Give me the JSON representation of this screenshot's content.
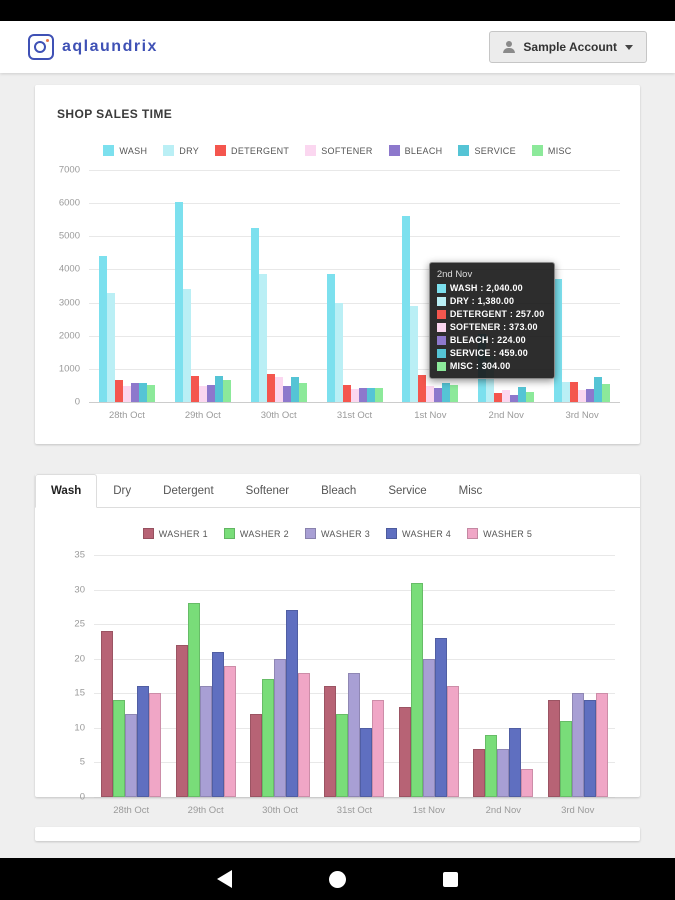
{
  "header": {
    "logo_text": "aqlaundrix",
    "account_label": "Sample Account"
  },
  "colors": {
    "brand": "#3f51b5",
    "page_bg": "#efefef",
    "tooltip_bg": "#161616"
  },
  "icons": {
    "logo": "washing-machine-icon",
    "account": "person-icon",
    "account_caret": "chevron-down-icon",
    "nav": [
      "back-icon",
      "home-icon",
      "recents-icon"
    ]
  },
  "washer_tabs": {
    "items": [
      "Wash",
      "Dry",
      "Detergent",
      "Softener",
      "Bleach",
      "Service",
      "Misc"
    ],
    "active": "Wash"
  },
  "chart_data": [
    {
      "id": "shop-sales",
      "type": "bar",
      "title": "SHOP SALES TIME",
      "xlabel": "",
      "ylabel": "",
      "ylim": [
        0,
        7000
      ],
      "ytick_step": 1000,
      "grid": "horizontal",
      "legend_position": "top",
      "categories": [
        "28th Oct",
        "29th Oct",
        "30th Oct",
        "31st Oct",
        "1st Nov",
        "2nd Nov",
        "3rd Nov"
      ],
      "series": [
        {
          "name": "WASH",
          "color": "#7ce0ee",
          "values": [
            4400,
            6050,
            5250,
            3850,
            5600,
            2040,
            3700
          ]
        },
        {
          "name": "DRY",
          "color": "#baeff5",
          "values": [
            3300,
            3400,
            3850,
            3000,
            2900,
            1380,
            600
          ]
        },
        {
          "name": "DETERGENT",
          "color": "#f4564e",
          "values": [
            650,
            790,
            850,
            520,
            810,
            257,
            600
          ]
        },
        {
          "name": "SOFTENER",
          "color": "#fbd7f0",
          "values": [
            480,
            490,
            760,
            380,
            490,
            373,
            360
          ]
        },
        {
          "name": "BLEACH",
          "color": "#8d78cc",
          "values": [
            580,
            520,
            480,
            430,
            430,
            224,
            390
          ]
        },
        {
          "name": "SERVICE",
          "color": "#55c4d5",
          "values": [
            580,
            790,
            760,
            430,
            580,
            459,
            750
          ]
        },
        {
          "name": "MISC",
          "color": "#8ce99a",
          "values": [
            520,
            660,
            580,
            430,
            520,
            304,
            540
          ]
        }
      ],
      "tooltip": {
        "title": "2nd Nov",
        "rows": [
          {
            "label": "WASH",
            "value": "2,040.00",
            "color": "#7ce0ee"
          },
          {
            "label": "DRY",
            "value": "1,380.00",
            "color": "#baeff5"
          },
          {
            "label": "DETERGENT",
            "value": "257.00",
            "color": "#f4564e"
          },
          {
            "label": "SOFTENER",
            "value": "373.00",
            "color": "#fbd7f0"
          },
          {
            "label": "BLEACH",
            "value": "224.00",
            "color": "#8d78cc"
          },
          {
            "label": "SERVICE",
            "value": "459.00",
            "color": "#55c4d5"
          },
          {
            "label": "MISC",
            "value": "304.00",
            "color": "#8ce99a"
          }
        ]
      }
    },
    {
      "id": "washer-usage",
      "type": "bar",
      "title": "",
      "xlabel": "",
      "ylabel": "",
      "ylim": [
        0,
        35
      ],
      "ytick_step": 5,
      "grid": "horizontal",
      "legend_position": "top",
      "categories": [
        "28th Oct",
        "29th Oct",
        "30th Oct",
        "31st Oct",
        "1st Nov",
        "2nd Nov",
        "3rd Nov"
      ],
      "series": [
        {
          "name": "WASHER 1",
          "color": "#b76375",
          "values": [
            24,
            22,
            12,
            16,
            13,
            7,
            14
          ]
        },
        {
          "name": "WASHER 2",
          "color": "#79dd79",
          "values": [
            14,
            28,
            17,
            12,
            31,
            9,
            11
          ]
        },
        {
          "name": "WASHER 3",
          "color": "#a89fd4",
          "values": [
            12,
            16,
            20,
            18,
            20,
            7,
            15
          ]
        },
        {
          "name": "WASHER 4",
          "color": "#5f6fc0",
          "values": [
            16,
            21,
            27,
            10,
            23,
            10,
            14
          ]
        },
        {
          "name": "WASHER 5",
          "color": "#f0a6c6",
          "values": [
            15,
            19,
            18,
            14,
            16,
            4,
            15
          ]
        }
      ]
    }
  ]
}
